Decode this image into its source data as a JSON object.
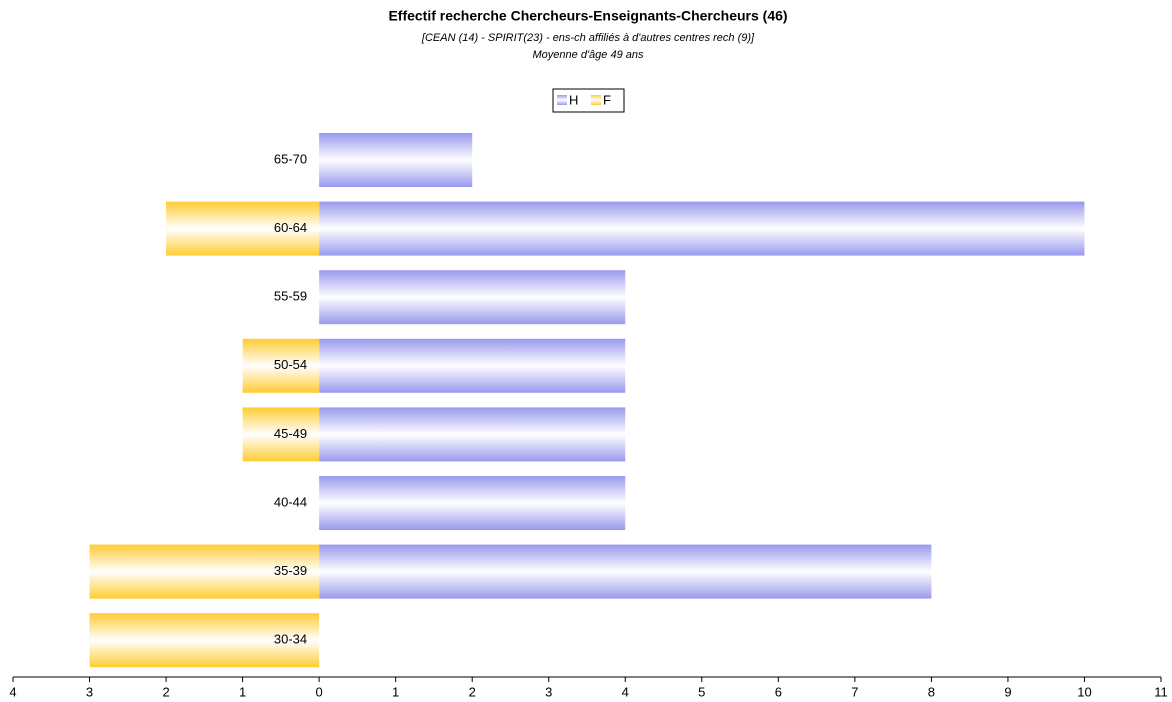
{
  "chart_data": {
    "type": "pyramid",
    "title": "Effectif recherche Chercheurs-Enseignants-Chercheurs (46)",
    "subtitle": "[CEAN (14) - SPIRIT(23) - ens-ch affiliés à d'autres centres rech (9)]",
    "subtitle2": "Moyenne d'âge 49 ans",
    "categories": [
      "65-70",
      "60-64",
      "55-59",
      "50-54",
      "45-49",
      "40-44",
      "35-39",
      "30-34"
    ],
    "series": [
      {
        "name": "H",
        "color": "#9999ee",
        "values": [
          2,
          10,
          4,
          4,
          4,
          4,
          8,
          0
        ]
      },
      {
        "name": "F",
        "color": "#ffcc33",
        "values": [
          0,
          -2,
          0,
          -1,
          -1,
          0,
          -3,
          -3
        ]
      }
    ],
    "xlim": [
      -4,
      11
    ],
    "xticks": [
      {
        "value": -4,
        "label": "4"
      },
      {
        "value": -3,
        "label": "3"
      },
      {
        "value": -2,
        "label": "2"
      },
      {
        "value": -1,
        "label": "1"
      },
      0,
      1,
      2,
      3,
      4,
      5,
      6,
      7,
      8,
      9,
      10,
      11
    ],
    "legend": "top"
  }
}
